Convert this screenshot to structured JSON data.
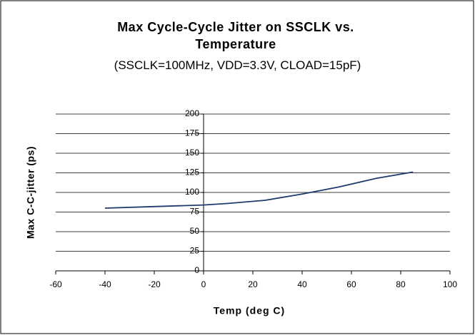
{
  "chart_data": {
    "type": "line",
    "title": "Max Cycle-Cycle Jitter on SSCLK vs. Temperature",
    "subtitle": "(SSCLK=100MHz, VDD=3.3V, CLOAD=15pF)",
    "x_label": "Temp (deg C)",
    "y_label": "Max C-C-jitter (ps)",
    "x": [
      -40,
      -20,
      0,
      10,
      25,
      40,
      55,
      70,
      85
    ],
    "series": [
      {
        "name": null,
        "color": "#1f3a6e",
        "values": [
          80,
          82,
          84,
          86,
          90,
          98,
          107,
          118,
          126
        ]
      }
    ],
    "xlim": [
      -60,
      100
    ],
    "xticks": [
      -60,
      -40,
      -20,
      0,
      20,
      40,
      60,
      80,
      100
    ],
    "ylim": [
      0,
      200
    ],
    "yticks": [
      0,
      25,
      50,
      75,
      100,
      125,
      150,
      175,
      200
    ],
    "grid": true
  }
}
